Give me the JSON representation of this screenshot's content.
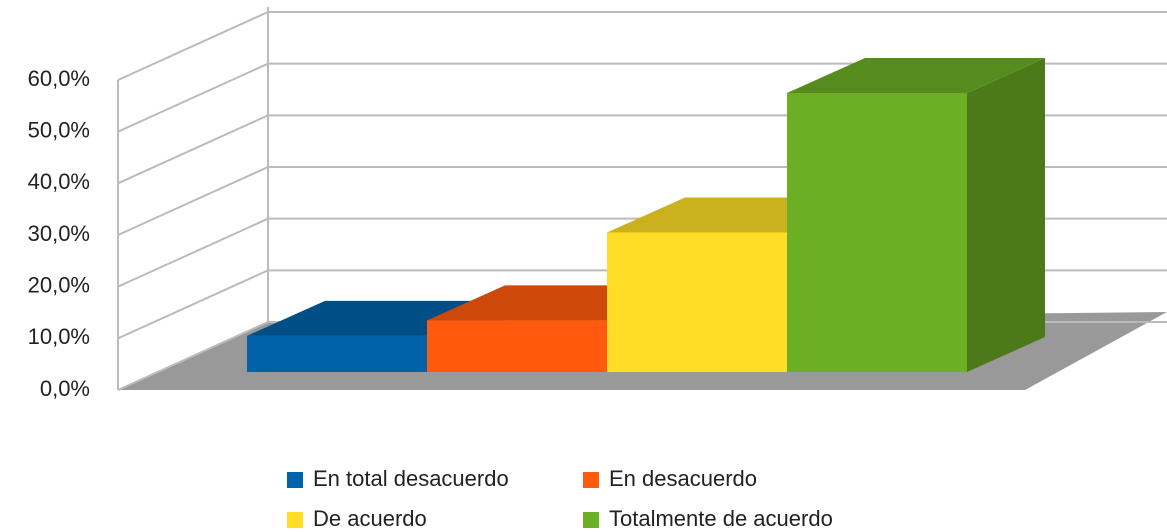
{
  "chart_data": {
    "type": "bar3d",
    "categories": [
      "En total desacuerdo",
      "En desacuerdo",
      "De acuerdo",
      "Totalmente de acuerdo"
    ],
    "series": [
      {
        "name": "En total desacuerdo",
        "color": "#0062a8",
        "values": [
          7,
          null,
          null,
          null
        ]
      },
      {
        "name": "En desacuerdo",
        "color": "#ff5a0e",
        "values": [
          null,
          10,
          null,
          null
        ]
      },
      {
        "name": "De acuerdo",
        "color": "#ffdd26",
        "values": [
          null,
          null,
          27,
          null
        ]
      },
      {
        "name": "Totalmente de acuerdo",
        "color": "#6cae24",
        "values": [
          null,
          null,
          null,
          54
        ]
      }
    ],
    "ylim": [
      0,
      60
    ],
    "yticks": [
      {
        "value": 0,
        "label": "0,0%"
      },
      {
        "value": 10,
        "label": "10,0%"
      },
      {
        "value": 20,
        "label": "20,0%"
      },
      {
        "value": 30,
        "label": "30,0%"
      },
      {
        "value": 40,
        "label": "40,0%"
      },
      {
        "value": 50,
        "label": "50,0%"
      },
      {
        "value": 60,
        "label": "60,0%"
      }
    ],
    "grid": true
  }
}
